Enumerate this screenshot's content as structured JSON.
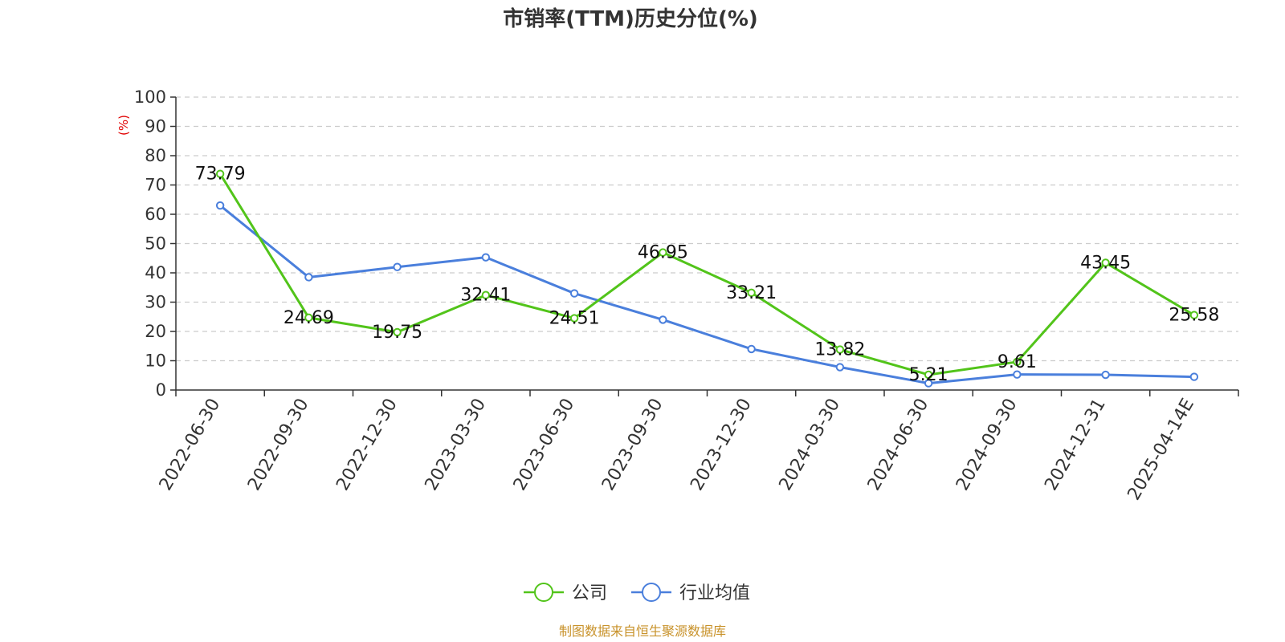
{
  "chart_data": {
    "type": "line",
    "title": "市销率(TTM)历史分位(%)",
    "ylabel": "(%)",
    "ylim": [
      0,
      100
    ],
    "yticks": [
      0,
      10,
      20,
      30,
      40,
      50,
      60,
      70,
      80,
      90,
      100
    ],
    "categories": [
      "2022-06-30",
      "2022-09-30",
      "2022-12-30",
      "2023-03-30",
      "2023-06-30",
      "2023-09-30",
      "2023-12-30",
      "2024-03-30",
      "2024-06-30",
      "2024-09-30",
      "2024-12-31",
      "2025-04-14E"
    ],
    "series": [
      {
        "name": "公司",
        "color": "#52c41a",
        "show_labels": true,
        "values": [
          73.79,
          24.69,
          19.75,
          32.41,
          24.51,
          46.95,
          33.21,
          13.82,
          5.21,
          9.61,
          43.45,
          25.58
        ],
        "labels": [
          "73.79",
          "24.69",
          "19.75",
          "32.41",
          "24.51",
          "46.95",
          "33.21",
          "13.82",
          "5.21",
          "9.61",
          "43.45",
          "25.58"
        ]
      },
      {
        "name": "行业均值",
        "color": "#4a7fdc",
        "show_labels": false,
        "values": [
          63.0,
          38.5,
          42.0,
          45.3,
          33.0,
          24.0,
          14.0,
          7.8,
          2.3,
          5.3,
          5.2,
          4.5
        ]
      }
    ],
    "grid": true,
    "legend_position": "bottom-center"
  },
  "footer": {
    "source": "制图数据来自恒生聚源数据库",
    "source_color": "#c8922a"
  },
  "colors": {
    "unit_label": "#e00000",
    "grid": "#cccccc",
    "axis": "#333333"
  }
}
